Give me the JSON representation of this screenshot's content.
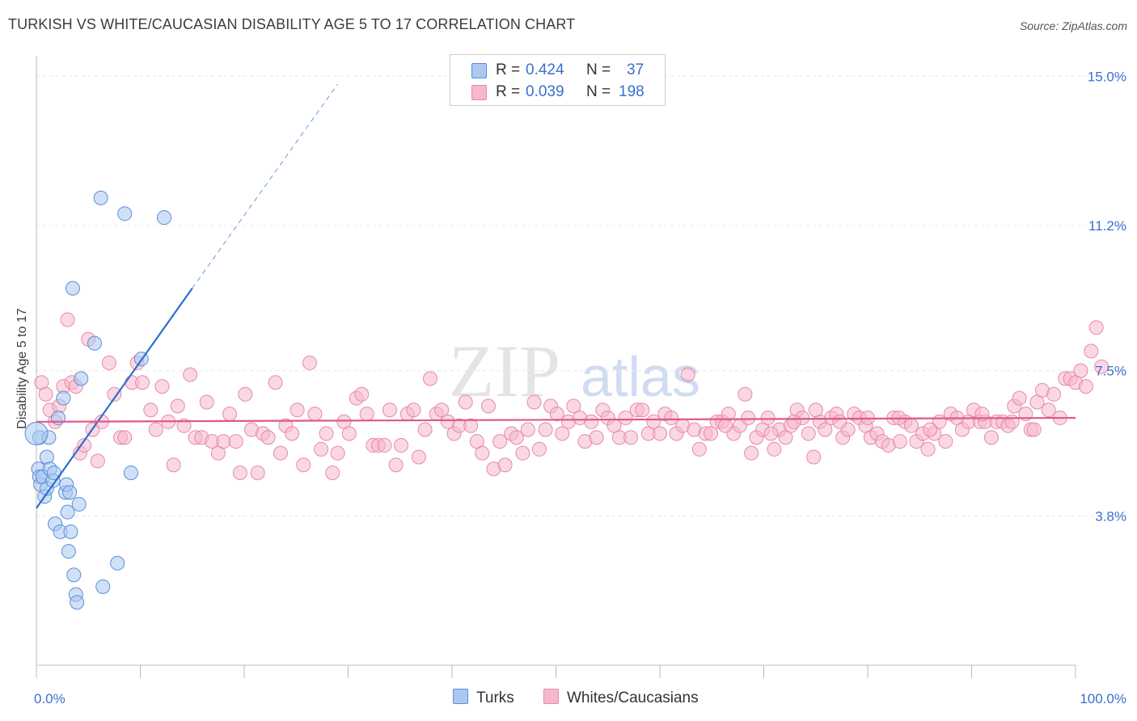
{
  "title": "TURKISH VS WHITE/CAUCASIAN DISABILITY AGE 5 TO 17 CORRELATION CHART",
  "source": "Source: ZipAtlas.com",
  "watermark": {
    "zip": "ZIP",
    "atlas": "atlas"
  },
  "colors": {
    "blue_fill": "#aac8f0",
    "blue_stroke": "#5b8ed8",
    "blue_line": "#2b6fd0",
    "pink_fill": "#f6b8cc",
    "pink_stroke": "#e888a8",
    "pink_line": "#e0588a",
    "tick_text": "#3b6fcf",
    "grid": "#e6e6e6"
  },
  "legend": {
    "rows": [
      {
        "r_label": "R =",
        "r_value": "0.424",
        "n_label": "N =",
        "n_value": "37"
      },
      {
        "r_label": "R =",
        "r_value": "0.039",
        "n_label": "N =",
        "n_value": "198"
      }
    ]
  },
  "bottom_legend": {
    "turks": "Turks",
    "whites": "Whites/Caucasians"
  },
  "chart_data": {
    "type": "scatter",
    "title": "TURKISH VS WHITE/CAUCASIAN DISABILITY AGE 5 TO 17 CORRELATION CHART",
    "xlabel": "",
    "ylabel": "Disability Age 5 to 17",
    "xlim": [
      0,
      100
    ],
    "ylim": [
      0,
      15.5
    ],
    "x_tick_labels": [
      "0.0%",
      "100.0%"
    ],
    "y_ticks": [
      3.8,
      7.5,
      11.2,
      15.0
    ],
    "y_tick_labels": [
      "3.8%",
      "7.5%",
      "11.2%",
      "15.0%"
    ],
    "legend_position": "top-center",
    "series": [
      {
        "name": "Turks",
        "r": 0.424,
        "n": 37,
        "trend": {
          "x0": 0,
          "y0": 4.0,
          "x1": 15,
          "y1": 9.6,
          "dashed_to_x": 29,
          "dashed_to_y": 14.8
        },
        "points": [
          [
            0.3,
            5.8
          ],
          [
            0.2,
            5.0
          ],
          [
            0.3,
            4.8
          ],
          [
            0.4,
            4.6
          ],
          [
            0.6,
            4.8
          ],
          [
            0.8,
            4.3
          ],
          [
            1.0,
            4.5
          ],
          [
            1.0,
            5.3
          ],
          [
            1.2,
            5.8
          ],
          [
            1.3,
            5.0
          ],
          [
            1.6,
            4.7
          ],
          [
            1.7,
            4.9
          ],
          [
            1.8,
            3.6
          ],
          [
            2.1,
            6.3
          ],
          [
            2.3,
            3.4
          ],
          [
            2.6,
            6.8
          ],
          [
            2.8,
            4.4
          ],
          [
            2.9,
            4.6
          ],
          [
            3.0,
            3.9
          ],
          [
            3.1,
            2.9
          ],
          [
            3.2,
            4.4
          ],
          [
            3.3,
            3.4
          ],
          [
            3.5,
            9.6
          ],
          [
            3.6,
            2.3
          ],
          [
            3.8,
            1.8
          ],
          [
            3.9,
            1.6
          ],
          [
            4.1,
            4.1
          ],
          [
            4.3,
            7.3
          ],
          [
            5.6,
            8.2
          ],
          [
            6.2,
            11.9
          ],
          [
            6.4,
            2.0
          ],
          [
            7.8,
            2.6
          ],
          [
            8.5,
            11.5
          ],
          [
            9.1,
            4.9
          ],
          [
            10.1,
            7.8
          ],
          [
            12.3,
            11.4
          ],
          [
            0.0,
            5.9
          ]
        ]
      },
      {
        "name": "Whites/Caucasians",
        "r": 0.039,
        "n": 198,
        "trend": {
          "x0": 0,
          "y0": 6.2,
          "x1": 100,
          "y1": 6.3
        },
        "points": [
          [
            0.5,
            7.2
          ],
          [
            0.9,
            6.9
          ],
          [
            1.3,
            6.5
          ],
          [
            1.8,
            6.2
          ],
          [
            2.2,
            6.6
          ],
          [
            2.6,
            7.1
          ],
          [
            3.0,
            8.8
          ],
          [
            3.4,
            7.2
          ],
          [
            3.8,
            7.1
          ],
          [
            4.2,
            5.4
          ],
          [
            4.6,
            5.6
          ],
          [
            5.0,
            8.3
          ],
          [
            5.4,
            6.0
          ],
          [
            5.9,
            5.2
          ],
          [
            6.3,
            6.2
          ],
          [
            7.0,
            7.7
          ],
          [
            7.5,
            6.9
          ],
          [
            8.1,
            5.8
          ],
          [
            8.5,
            5.8
          ],
          [
            9.2,
            7.2
          ],
          [
            9.7,
            7.7
          ],
          [
            10.2,
            7.2
          ],
          [
            11.0,
            6.5
          ],
          [
            11.5,
            6.0
          ],
          [
            12.1,
            7.1
          ],
          [
            12.7,
            6.2
          ],
          [
            13.2,
            5.1
          ],
          [
            13.6,
            6.6
          ],
          [
            14.2,
            6.1
          ],
          [
            14.8,
            7.4
          ],
          [
            15.3,
            5.8
          ],
          [
            15.9,
            5.8
          ],
          [
            16.4,
            6.7
          ],
          [
            16.9,
            5.7
          ],
          [
            17.5,
            5.4
          ],
          [
            18.0,
            5.7
          ],
          [
            18.6,
            6.4
          ],
          [
            19.2,
            5.7
          ],
          [
            19.6,
            4.9
          ],
          [
            20.1,
            6.9
          ],
          [
            20.7,
            6.0
          ],
          [
            21.3,
            4.9
          ],
          [
            21.8,
            5.9
          ],
          [
            22.3,
            5.8
          ],
          [
            23.0,
            7.2
          ],
          [
            23.5,
            5.4
          ],
          [
            24.0,
            6.1
          ],
          [
            24.6,
            5.9
          ],
          [
            25.1,
            6.5
          ],
          [
            25.7,
            5.1
          ],
          [
            26.3,
            7.7
          ],
          [
            26.8,
            6.4
          ],
          [
            27.4,
            5.5
          ],
          [
            27.9,
            5.9
          ],
          [
            28.5,
            4.9
          ],
          [
            29.0,
            5.4
          ],
          [
            29.6,
            6.2
          ],
          [
            30.1,
            5.9
          ],
          [
            30.8,
            6.8
          ],
          [
            31.3,
            6.9
          ],
          [
            31.8,
            6.4
          ],
          [
            32.4,
            5.6
          ],
          [
            32.9,
            5.6
          ],
          [
            33.5,
            5.6
          ],
          [
            34.0,
            6.5
          ],
          [
            34.6,
            5.1
          ],
          [
            35.1,
            5.6
          ],
          [
            35.7,
            6.4
          ],
          [
            36.3,
            6.5
          ],
          [
            36.8,
            5.3
          ],
          [
            37.4,
            6.0
          ],
          [
            37.9,
            7.3
          ],
          [
            38.5,
            6.4
          ],
          [
            39.0,
            6.5
          ],
          [
            39.6,
            6.2
          ],
          [
            40.2,
            5.9
          ],
          [
            40.7,
            6.1
          ],
          [
            41.3,
            6.7
          ],
          [
            41.8,
            6.1
          ],
          [
            42.4,
            5.7
          ],
          [
            42.9,
            5.4
          ],
          [
            43.5,
            6.6
          ],
          [
            44.0,
            5.0
          ],
          [
            44.6,
            5.7
          ],
          [
            45.1,
            5.1
          ],
          [
            45.7,
            5.9
          ],
          [
            46.2,
            5.8
          ],
          [
            46.8,
            5.4
          ],
          [
            47.3,
            6.0
          ],
          [
            47.9,
            6.7
          ],
          [
            48.4,
            5.5
          ],
          [
            49.0,
            6.0
          ],
          [
            49.5,
            6.6
          ],
          [
            50.1,
            6.4
          ],
          [
            50.6,
            5.9
          ],
          [
            51.2,
            6.2
          ],
          [
            51.7,
            6.6
          ],
          [
            52.3,
            6.3
          ],
          [
            52.8,
            5.7
          ],
          [
            53.4,
            6.2
          ],
          [
            53.9,
            5.8
          ],
          [
            54.5,
            6.5
          ],
          [
            55.0,
            6.3
          ],
          [
            55.6,
            6.1
          ],
          [
            56.1,
            5.8
          ],
          [
            56.7,
            6.3
          ],
          [
            57.2,
            5.8
          ],
          [
            57.8,
            6.5
          ],
          [
            58.3,
            6.5
          ],
          [
            58.9,
            5.9
          ],
          [
            59.4,
            6.2
          ],
          [
            60.0,
            5.9
          ],
          [
            60.5,
            6.4
          ],
          [
            61.1,
            6.3
          ],
          [
            61.6,
            5.9
          ],
          [
            62.2,
            6.1
          ],
          [
            62.7,
            7.4
          ],
          [
            63.3,
            6.0
          ],
          [
            63.8,
            5.5
          ],
          [
            64.4,
            5.9
          ],
          [
            64.9,
            5.9
          ],
          [
            65.5,
            6.2
          ],
          [
            66.0,
            6.2
          ],
          [
            66.6,
            6.4
          ],
          [
            67.1,
            5.9
          ],
          [
            67.7,
            6.1
          ],
          [
            68.2,
            6.9
          ],
          [
            68.8,
            5.4
          ],
          [
            69.3,
            5.8
          ],
          [
            69.9,
            6.0
          ],
          [
            70.4,
            6.3
          ],
          [
            71.0,
            5.5
          ],
          [
            71.5,
            6.0
          ],
          [
            72.1,
            5.8
          ],
          [
            72.6,
            6.1
          ],
          [
            73.2,
            6.5
          ],
          [
            73.7,
            6.3
          ],
          [
            74.3,
            5.9
          ],
          [
            74.8,
            5.3
          ],
          [
            75.4,
            6.2
          ],
          [
            75.9,
            6.0
          ],
          [
            76.5,
            6.3
          ],
          [
            77.0,
            6.4
          ],
          [
            77.6,
            5.8
          ],
          [
            78.1,
            6.0
          ],
          [
            78.7,
            6.4
          ],
          [
            79.2,
            6.3
          ],
          [
            79.8,
            6.1
          ],
          [
            80.3,
            5.8
          ],
          [
            80.9,
            5.9
          ],
          [
            81.4,
            5.7
          ],
          [
            82.0,
            5.6
          ],
          [
            82.5,
            6.3
          ],
          [
            83.1,
            5.7
          ],
          [
            83.6,
            6.2
          ],
          [
            84.2,
            6.1
          ],
          [
            84.7,
            5.7
          ],
          [
            85.3,
            5.9
          ],
          [
            85.8,
            5.5
          ],
          [
            86.4,
            5.9
          ],
          [
            86.9,
            6.2
          ],
          [
            87.5,
            5.7
          ],
          [
            88.0,
            6.4
          ],
          [
            88.6,
            6.3
          ],
          [
            89.1,
            6.0
          ],
          [
            89.7,
            6.2
          ],
          [
            90.2,
            6.5
          ],
          [
            90.8,
            6.2
          ],
          [
            91.3,
            6.2
          ],
          [
            91.9,
            5.8
          ],
          [
            92.4,
            6.2
          ],
          [
            93.0,
            6.2
          ],
          [
            93.5,
            6.1
          ],
          [
            94.1,
            6.6
          ],
          [
            94.6,
            6.8
          ],
          [
            95.2,
            6.4
          ],
          [
            95.7,
            6.0
          ],
          [
            96.3,
            6.7
          ],
          [
            96.8,
            7.0
          ],
          [
            97.4,
            6.5
          ],
          [
            97.9,
            6.9
          ],
          [
            98.5,
            6.3
          ],
          [
            99.0,
            7.3
          ],
          [
            99.5,
            7.3
          ],
          [
            100.0,
            7.2
          ],
          [
            100.5,
            7.5
          ],
          [
            101.0,
            7.1
          ],
          [
            101.5,
            8.0
          ],
          [
            102.0,
            8.6
          ],
          [
            102.5,
            7.6
          ],
          [
            96.0,
            6.0
          ],
          [
            93.9,
            6.2
          ],
          [
            91.0,
            6.4
          ],
          [
            86.0,
            6.0
          ],
          [
            83.0,
            6.3
          ],
          [
            80.0,
            6.3
          ],
          [
            77.3,
            6.2
          ],
          [
            75.0,
            6.5
          ],
          [
            72.9,
            6.2
          ],
          [
            70.7,
            5.9
          ],
          [
            68.5,
            6.3
          ],
          [
            66.3,
            6.1
          ]
        ]
      }
    ]
  }
}
